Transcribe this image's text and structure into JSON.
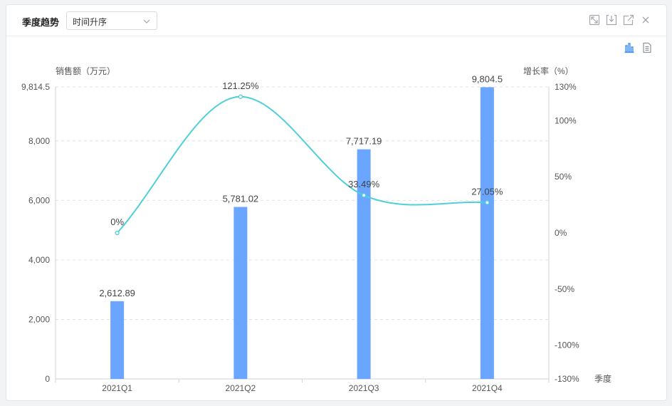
{
  "header": {
    "title": "季度趋势",
    "sort_select_value": "时间升序"
  },
  "icons": {
    "fullscreen": "fullscreen-icon",
    "download": "download-icon",
    "open_external": "external-link-icon",
    "close": "close-icon",
    "chart_view": "bar-chart-icon",
    "table_view": "document-icon"
  },
  "colors": {
    "bar": "#6aa6ff",
    "line": "#4fcfd9"
  },
  "chart_data": {
    "type": "bar",
    "categories": [
      "2021Q1",
      "2021Q2",
      "2021Q3",
      "2021Q4"
    ],
    "series": [
      {
        "type": "bar",
        "axis": "left",
        "values": [
          2612.89,
          5781.02,
          7717.19,
          9804.5
        ],
        "labels": [
          "2,612.89",
          "5,781.02",
          "7,717.19",
          "9,804.5"
        ]
      },
      {
        "type": "line",
        "smooth": true,
        "axis": "right",
        "values": [
          0,
          121.25,
          33.49,
          27.05
        ],
        "labels": [
          "0%",
          "121.25%",
          "33.49%",
          "27.05%"
        ]
      }
    ],
    "xlabel": "季度",
    "ylabel_left": "销售额（万元）",
    "ylabel_right": "增长率（%）",
    "ylim_left": [
      0,
      9814.5
    ],
    "ylim_right": [
      -130,
      130
    ],
    "yticks_left": [
      0,
      2000,
      4000,
      6000,
      8000,
      9814.5
    ],
    "ytick_labels_left": [
      "0",
      "2,000",
      "4,000",
      "6,000",
      "8,000",
      "9,814.5"
    ],
    "yticks_right": [
      -130,
      -100,
      -50,
      0,
      50,
      100,
      130
    ],
    "ytick_labels_right": [
      "-130%",
      "-100%",
      "-50%",
      "0%",
      "50%",
      "100%",
      "130%"
    ],
    "grid": true
  }
}
